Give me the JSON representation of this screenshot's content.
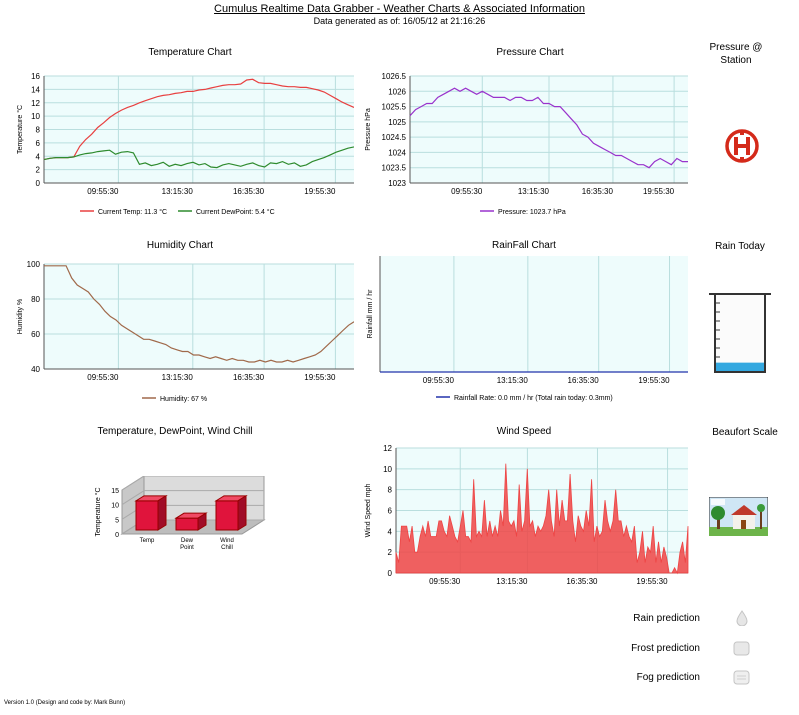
{
  "header": {
    "title": "Cumulus Realtime Data Grabber - Weather Charts & Associated Information",
    "subtitle": "Data generated as of: 16/05/12  at  21:16:26"
  },
  "panels": {
    "pressure_station": "Pressure @ Station",
    "rain_today": "Rain Today",
    "beaufort": "Beaufort Scale",
    "rain_today_level": 0.12
  },
  "predictions": {
    "rain": "Rain prediction",
    "frost": "Frost prediction",
    "fog": "Fog prediction"
  },
  "footer": {
    "version": "Version 1.0 (Design and code by: Mark Bunn)"
  },
  "chart_data": [
    {
      "id": "temperature",
      "type": "line",
      "title": "Temperature Chart",
      "ylabel": "Temperature °C",
      "ylim": [
        0,
        16
      ],
      "yticks": [
        0,
        2,
        4,
        6,
        8,
        10,
        12,
        14,
        16
      ],
      "xticks": [
        "09:55:30",
        "13:15:30",
        "16:35:30",
        "19:55:30"
      ],
      "xtick_pos": [
        0.24,
        0.48,
        0.71,
        0.94
      ],
      "grid": true,
      "legend": "bottom",
      "series": [
        {
          "name": "Current Temp:  11.3 °C",
          "color": "#e84040",
          "values": [
            3.5,
            3.7,
            3.8,
            3.8,
            3.8,
            3.9,
            5.5,
            6.5,
            7.3,
            8.3,
            9.0,
            9.8,
            10.4,
            10.9,
            11.3,
            11.6,
            12.0,
            12.3,
            12.6,
            12.9,
            13.1,
            13.2,
            13.4,
            13.5,
            13.7,
            13.7,
            13.9,
            14.0,
            14.2,
            14.4,
            14.6,
            14.7,
            14.7,
            14.8,
            15.4,
            15.5,
            15.0,
            14.9,
            14.9,
            14.7,
            14.5,
            14.4,
            14.4,
            14.3,
            14.3,
            14.1,
            13.9,
            13.6,
            13.1,
            12.6,
            12.1,
            11.7,
            11.3
          ]
        },
        {
          "name": "Current DewPoint:  5.4 °C",
          "color": "#2e8b2e",
          "values": [
            3.5,
            3.7,
            3.8,
            3.8,
            3.8,
            3.9,
            4.2,
            4.4,
            4.5,
            4.7,
            4.8,
            4.9,
            4.3,
            4.6,
            4.7,
            4.5,
            2.8,
            3.0,
            2.6,
            2.8,
            3.1,
            2.5,
            2.8,
            2.6,
            2.9,
            3.1,
            2.7,
            2.9,
            2.4,
            2.3,
            2.7,
            2.9,
            2.7,
            2.5,
            2.8,
            3.0,
            2.6,
            2.4,
            3.0,
            2.9,
            3.2,
            2.8,
            3.0,
            2.5,
            2.7,
            3.2,
            3.5,
            3.8,
            4.2,
            4.6,
            4.9,
            5.2,
            5.4
          ]
        }
      ]
    },
    {
      "id": "pressure",
      "type": "line",
      "title": "Pressure Chart",
      "ylabel": "Pressure hPa",
      "ylim": [
        1023,
        1026.5
      ],
      "yticks": [
        1023,
        1023.5,
        1024,
        1024.5,
        1025,
        1025.5,
        1026,
        1026.5
      ],
      "xticks": [
        "09:55:30",
        "13:15:30",
        "16:35:30",
        "19:55:30"
      ],
      "xtick_pos": [
        0.26,
        0.5,
        0.73,
        0.95
      ],
      "grid": true,
      "legend": "bottom",
      "series": [
        {
          "name": "Pressure:  1023.7 hPa",
          "color": "#9933cc",
          "values": [
            1025.2,
            1025.4,
            1025.5,
            1025.6,
            1025.6,
            1025.8,
            1025.9,
            1026.0,
            1026.1,
            1026.0,
            1026.1,
            1026.0,
            1025.9,
            1026.0,
            1025.9,
            1025.8,
            1025.8,
            1025.8,
            1025.7,
            1025.8,
            1025.8,
            1025.7,
            1025.7,
            1025.8,
            1025.6,
            1025.6,
            1025.5,
            1025.5,
            1025.3,
            1025.1,
            1024.9,
            1024.6,
            1024.5,
            1024.3,
            1024.2,
            1024.1,
            1024.0,
            1023.9,
            1023.9,
            1023.8,
            1023.7,
            1023.6,
            1023.6,
            1023.5,
            1023.7,
            1023.8,
            1023.7,
            1023.6,
            1023.8,
            1023.7,
            1023.7
          ]
        }
      ]
    },
    {
      "id": "humidity",
      "type": "line",
      "title": "Humidity Chart",
      "ylabel": "Humidity %",
      "ylim": [
        40,
        100
      ],
      "yticks": [
        40,
        60,
        80,
        100
      ],
      "xticks": [
        "09:55:30",
        "13:15:30",
        "16:35:30",
        "19:55:30"
      ],
      "xtick_pos": [
        0.24,
        0.48,
        0.71,
        0.94
      ],
      "grid": true,
      "legend": "bottom",
      "series": [
        {
          "name": "Humidity:  67 %",
          "color": "#a0694a",
          "values": [
            99,
            99,
            99,
            99,
            99,
            92,
            88,
            86,
            84,
            80,
            77,
            73,
            70,
            68,
            65,
            63,
            61,
            59,
            57,
            57,
            56,
            55,
            54,
            52,
            51,
            50,
            50,
            48,
            48,
            47,
            46,
            47,
            46,
            45,
            46,
            45,
            45,
            44,
            44,
            45,
            44,
            45,
            44,
            44,
            45,
            44,
            45,
            46,
            47,
            48,
            50,
            53,
            56,
            59,
            62,
            65,
            67
          ]
        }
      ]
    },
    {
      "id": "rainfall",
      "type": "line",
      "title": "RainFall Chart",
      "ylabel": "Rainfall mm / hr",
      "ylim": [
        0,
        1
      ],
      "yticks": [],
      "xticks": [
        "09:55:30",
        "13:15:30",
        "16:35:30",
        "19:55:30"
      ],
      "xtick_pos": [
        0.24,
        0.48,
        0.71,
        0.94
      ],
      "grid": true,
      "legend": "bottom",
      "series": [
        {
          "name": "Rainfall Rate:  0.0 mm / hr (Total rain today: 0.3mm)",
          "color": "#2233aa",
          "values": [
            0,
            0,
            0,
            0,
            0,
            0,
            0,
            0,
            0,
            0,
            0,
            0,
            0,
            0,
            0,
            0,
            0,
            0,
            0,
            0
          ]
        }
      ]
    },
    {
      "id": "temp-dew-chill",
      "type": "bar",
      "title": "Temperature, DewPoint, Wind Chill",
      "ylabel": "Temperature °C",
      "ylim": [
        0,
        15
      ],
      "yticks": [
        0,
        5,
        10,
        15
      ],
      "categories": [
        "Temp",
        "Dew Point",
        "Wind Chill"
      ],
      "values": [
        11.3,
        5.4,
        11.3
      ],
      "color": "#e0143c"
    },
    {
      "id": "wind",
      "type": "area",
      "title": "Wind Speed",
      "ylabel": "Wind Speed mph",
      "ylim": [
        0,
        12
      ],
      "yticks": [
        0,
        2,
        4,
        6,
        8,
        10,
        12
      ],
      "xticks": [
        "09:55:30",
        "13:15:30",
        "16:35:30",
        "19:55:30"
      ],
      "xtick_pos": [
        0.22,
        0.45,
        0.69,
        0.93
      ],
      "grid": true,
      "color": "#ee4444",
      "values": [
        2,
        1,
        4.5,
        4.5,
        4.5,
        3,
        4.5,
        2,
        2,
        3.5,
        4.5,
        3.5,
        5,
        3.5,
        3.5,
        3.5,
        5,
        5,
        4,
        3.5,
        5.5,
        4.5,
        3.5,
        3,
        4.5,
        6,
        3.5,
        3.5,
        3,
        9,
        3.5,
        4,
        3.5,
        7,
        3.5,
        5,
        3.5,
        4.5,
        3.5,
        6,
        4.5,
        10.5,
        5,
        4.5,
        5,
        3.5,
        8.5,
        4,
        5,
        10,
        4.5,
        5,
        3.5,
        4.5,
        4,
        4.5,
        5.5,
        8,
        5,
        3.5,
        8,
        4.5,
        7,
        5,
        5,
        9.5,
        5,
        3,
        5.5,
        4.5,
        4,
        6,
        4.5,
        9,
        3,
        4.5,
        3.5,
        4,
        7,
        5,
        4,
        5,
        8,
        5,
        5,
        3.5,
        4.5,
        3.5,
        3,
        4.5,
        1,
        2,
        4,
        1,
        2.5,
        2,
        4.5,
        1,
        3,
        1,
        2.5,
        1.5,
        0,
        0,
        0.5,
        0,
        2,
        3,
        1,
        4.5
      ]
    }
  ]
}
